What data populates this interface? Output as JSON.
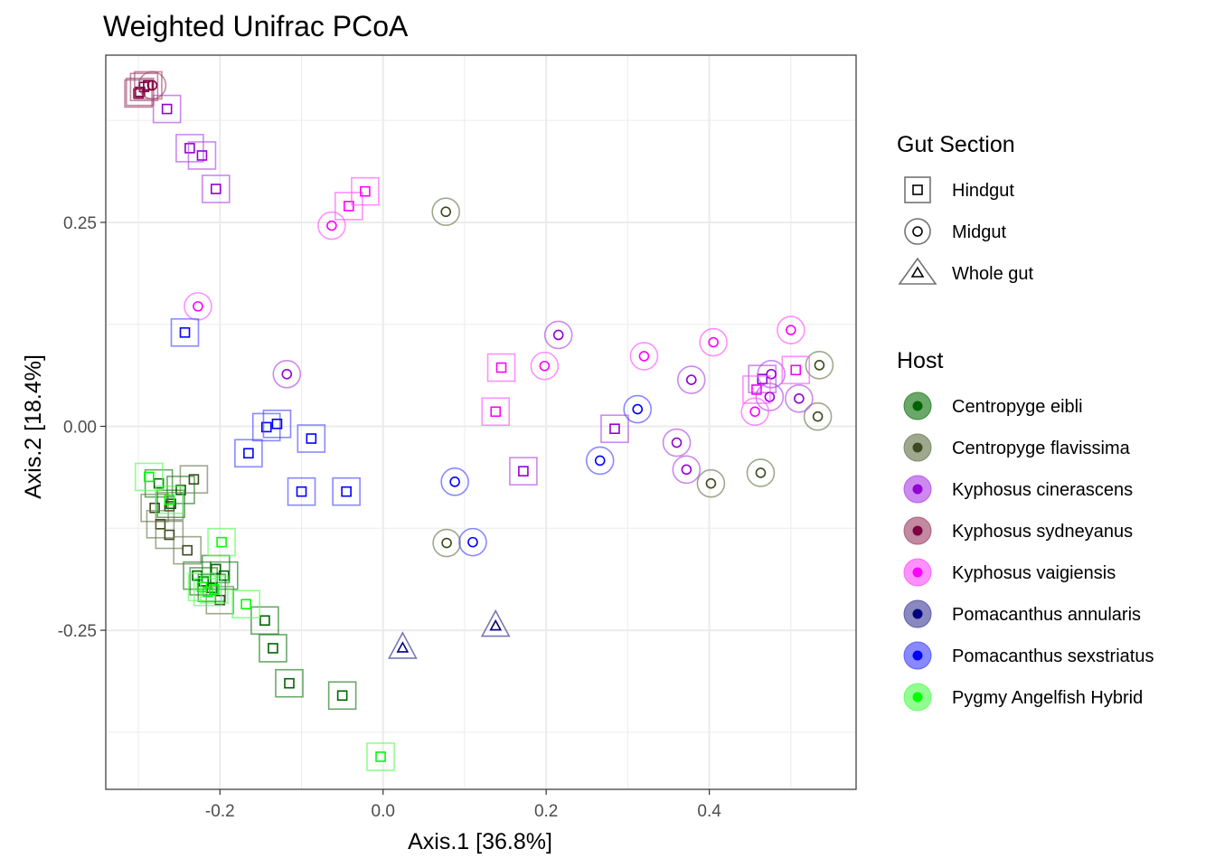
{
  "chart_data": {
    "type": "scatter",
    "title": "Weighted Unifrac PCoA",
    "xlabel": "Axis.1   [36.8%]",
    "ylabel": "Axis.2   [18.4%]",
    "xlim": [
      -0.34,
      0.58
    ],
    "ylim": [
      -0.445,
      0.455
    ],
    "xticks": [
      -0.2,
      0.0,
      0.2,
      0.4
    ],
    "xtick_labels": [
      "-0.2",
      "0.0",
      "0.2",
      "0.4"
    ],
    "yticks": [
      -0.25,
      0.0,
      0.25
    ],
    "ytick_labels": [
      "-0.25",
      "0.00",
      "0.25"
    ],
    "grid": true,
    "legend_position": "right",
    "shape_legend": {
      "title": "Gut Section",
      "items": [
        {
          "label": "Hindgut",
          "shape": "square"
        },
        {
          "label": "Midgut",
          "shape": "circle"
        },
        {
          "label": "Whole gut",
          "shape": "triangle"
        }
      ]
    },
    "color_legend": {
      "title": "Host",
      "items": [
        {
          "label": "Centropyge eibli",
          "fill": "#1a7a1a",
          "stroke": "#006400"
        },
        {
          "label": "Centropyge flavissima",
          "fill": "#6b7a52",
          "stroke": "#3c4a1e"
        },
        {
          "label": "Kyphosus cinerascens",
          "fill": "#b04ae6",
          "stroke": "#9400d3"
        },
        {
          "label": "Kyphosus sydneyanus",
          "fill": "#a14a6e",
          "stroke": "#800040"
        },
        {
          "label": "Kyphosus vaigiensis",
          "fill": "#ff55ff",
          "stroke": "#ff00ff"
        },
        {
          "label": "Pomacanthus annularis",
          "fill": "#4a4a9e",
          "stroke": "#000080"
        },
        {
          "label": "Pomacanthus sexstriatus",
          "fill": "#4a4aff",
          "stroke": "#0000ff"
        },
        {
          "label": "Pygmy Angelfish Hybrid",
          "fill": "#55ff55",
          "stroke": "#00ff00"
        }
      ]
    },
    "series": [
      {
        "name": "Centropyge eibli",
        "points": [
          {
            "x": -0.275,
            "y": -0.07,
            "shape": "square"
          },
          {
            "x": -0.26,
            "y": -0.095,
            "shape": "square"
          },
          {
            "x": -0.248,
            "y": -0.078,
            "shape": "square"
          },
          {
            "x": -0.228,
            "y": -0.183,
            "shape": "square"
          },
          {
            "x": -0.22,
            "y": -0.19,
            "shape": "square"
          },
          {
            "x": -0.21,
            "y": -0.198,
            "shape": "square"
          },
          {
            "x": -0.205,
            "y": -0.175,
            "shape": "square"
          },
          {
            "x": -0.195,
            "y": -0.183,
            "shape": "square"
          },
          {
            "x": -0.145,
            "y": -0.238,
            "shape": "square"
          },
          {
            "x": -0.135,
            "y": -0.272,
            "shape": "square"
          },
          {
            "x": -0.115,
            "y": -0.315,
            "shape": "square"
          },
          {
            "x": -0.05,
            "y": -0.33,
            "shape": "square"
          }
        ]
      },
      {
        "name": "Centropyge flavissima",
        "points": [
          {
            "x": -0.28,
            "y": -0.1,
            "shape": "square"
          },
          {
            "x": -0.262,
            "y": -0.098,
            "shape": "square"
          },
          {
            "x": -0.232,
            "y": -0.065,
            "shape": "square"
          },
          {
            "x": -0.273,
            "y": -0.12,
            "shape": "square"
          },
          {
            "x": -0.262,
            "y": -0.133,
            "shape": "square"
          },
          {
            "x": -0.24,
            "y": -0.152,
            "shape": "square"
          },
          {
            "x": -0.2,
            "y": -0.213,
            "shape": "square"
          },
          {
            "x": 0.077,
            "y": 0.263,
            "shape": "circle"
          },
          {
            "x": 0.078,
            "y": -0.143,
            "shape": "circle"
          },
          {
            "x": 0.402,
            "y": -0.07,
            "shape": "circle"
          },
          {
            "x": 0.463,
            "y": -0.057,
            "shape": "circle"
          },
          {
            "x": 0.535,
            "y": 0.075,
            "shape": "circle"
          },
          {
            "x": 0.533,
            "y": 0.012,
            "shape": "circle"
          }
        ]
      },
      {
        "name": "Kyphosus cinerascens",
        "points": [
          {
            "x": -0.265,
            "y": 0.389,
            "shape": "square"
          },
          {
            "x": -0.237,
            "y": 0.341,
            "shape": "square"
          },
          {
            "x": -0.222,
            "y": 0.332,
            "shape": "square"
          },
          {
            "x": -0.205,
            "y": 0.291,
            "shape": "square"
          },
          {
            "x": -0.118,
            "y": 0.064,
            "shape": "circle"
          },
          {
            "x": 0.172,
            "y": -0.055,
            "shape": "square"
          },
          {
            "x": 0.284,
            "y": -0.003,
            "shape": "square"
          },
          {
            "x": 0.215,
            "y": 0.112,
            "shape": "circle"
          },
          {
            "x": 0.36,
            "y": -0.02,
            "shape": "circle"
          },
          {
            "x": 0.372,
            "y": -0.053,
            "shape": "circle"
          },
          {
            "x": 0.378,
            "y": 0.057,
            "shape": "circle"
          },
          {
            "x": 0.465,
            "y": 0.058,
            "shape": "square"
          },
          {
            "x": 0.476,
            "y": 0.064,
            "shape": "circle"
          },
          {
            "x": 0.474,
            "y": 0.036,
            "shape": "circle"
          },
          {
            "x": 0.51,
            "y": 0.034,
            "shape": "circle"
          }
        ]
      },
      {
        "name": "Kyphosus sydneyanus",
        "points": [
          {
            "x": -0.298,
            "y": 0.41,
            "shape": "square"
          },
          {
            "x": -0.3,
            "y": 0.408,
            "shape": "square"
          },
          {
            "x": -0.293,
            "y": 0.416,
            "shape": "square"
          },
          {
            "x": -0.288,
            "y": 0.418,
            "shape": "square"
          },
          {
            "x": -0.283,
            "y": 0.418,
            "shape": "circle"
          }
        ]
      },
      {
        "name": "Kyphosus vaigiensis",
        "points": [
          {
            "x": -0.063,
            "y": 0.246,
            "shape": "circle"
          },
          {
            "x": -0.042,
            "y": 0.27,
            "shape": "square"
          },
          {
            "x": -0.022,
            "y": 0.288,
            "shape": "square"
          },
          {
            "x": -0.227,
            "y": 0.147,
            "shape": "circle"
          },
          {
            "x": 0.145,
            "y": 0.072,
            "shape": "square"
          },
          {
            "x": 0.138,
            "y": 0.018,
            "shape": "square"
          },
          {
            "x": 0.198,
            "y": 0.074,
            "shape": "circle"
          },
          {
            "x": 0.32,
            "y": 0.086,
            "shape": "circle"
          },
          {
            "x": 0.405,
            "y": 0.103,
            "shape": "circle"
          },
          {
            "x": 0.458,
            "y": 0.045,
            "shape": "square"
          },
          {
            "x": 0.456,
            "y": 0.018,
            "shape": "circle"
          },
          {
            "x": 0.5,
            "y": 0.118,
            "shape": "circle"
          },
          {
            "x": 0.506,
            "y": 0.069,
            "shape": "square"
          }
        ]
      },
      {
        "name": "Pomacanthus annularis",
        "points": [
          {
            "x": 0.024,
            "y": -0.272,
            "shape": "triangle"
          },
          {
            "x": 0.138,
            "y": -0.245,
            "shape": "triangle"
          }
        ]
      },
      {
        "name": "Pomacanthus sexstriatus",
        "points": [
          {
            "x": -0.243,
            "y": 0.115,
            "shape": "square"
          },
          {
            "x": -0.165,
            "y": -0.033,
            "shape": "square"
          },
          {
            "x": -0.143,
            "y": -0.001,
            "shape": "square"
          },
          {
            "x": -0.13,
            "y": 0.003,
            "shape": "square"
          },
          {
            "x": -0.088,
            "y": -0.015,
            "shape": "square"
          },
          {
            "x": -0.1,
            "y": -0.08,
            "shape": "square"
          },
          {
            "x": -0.045,
            "y": -0.08,
            "shape": "square"
          },
          {
            "x": 0.088,
            "y": -0.068,
            "shape": "circle"
          },
          {
            "x": 0.11,
            "y": -0.142,
            "shape": "circle"
          },
          {
            "x": 0.266,
            "y": -0.042,
            "shape": "circle"
          },
          {
            "x": 0.312,
            "y": 0.021,
            "shape": "circle"
          }
        ]
      },
      {
        "name": "Pygmy Angelfish Hybrid",
        "points": [
          {
            "x": -0.287,
            "y": -0.062,
            "shape": "square"
          },
          {
            "x": -0.262,
            "y": -0.09,
            "shape": "square"
          },
          {
            "x": -0.198,
            "y": -0.142,
            "shape": "square"
          },
          {
            "x": -0.222,
            "y": -0.197,
            "shape": "square"
          },
          {
            "x": -0.215,
            "y": -0.203,
            "shape": "square"
          },
          {
            "x": -0.207,
            "y": -0.2,
            "shape": "square"
          },
          {
            "x": -0.168,
            "y": -0.218,
            "shape": "square"
          },
          {
            "x": -0.003,
            "y": -0.405,
            "shape": "square"
          }
        ]
      }
    ]
  }
}
